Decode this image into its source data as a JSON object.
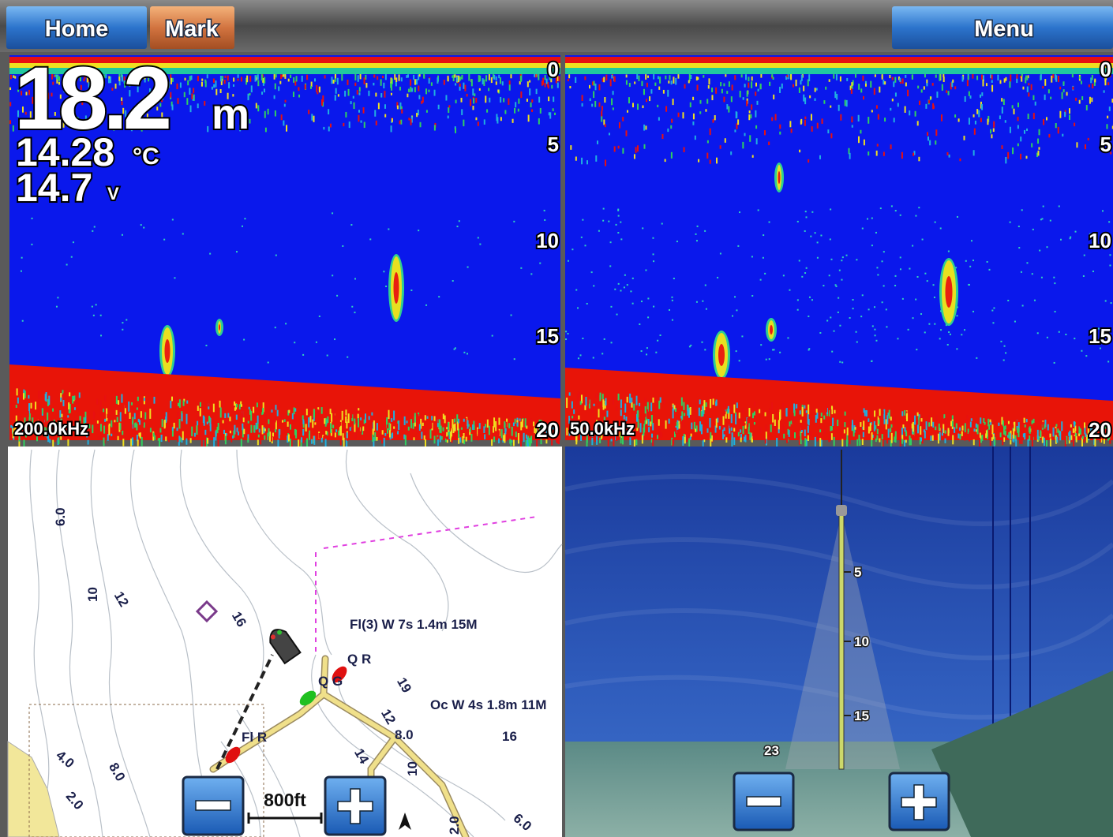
{
  "top_bar": {
    "home": "Home",
    "mark": "Mark",
    "menu": "Menu"
  },
  "sonar_left": {
    "depth": "18.2",
    "depth_unit": "m",
    "temperature": "14.28",
    "temperature_unit": "°C",
    "voltage": "14.7",
    "voltage_unit": "V",
    "scale": [
      "0",
      "5",
      "10",
      "15",
      "20"
    ],
    "frequency": "200.0kHz"
  },
  "sonar_right": {
    "scale": [
      "0",
      "5",
      "10",
      "15",
      "20"
    ],
    "frequency": "50.0kHz"
  },
  "chart": {
    "labels": [
      "6.0",
      "10",
      "12",
      "16",
      "Fl(3) W 7s 1.4m 15M",
      "Q R",
      "Q G",
      "19",
      "Oc W 4s 1.8m 11M",
      "12",
      "8.0",
      "16",
      "Fl R",
      "14",
      "10",
      "4.0",
      "8.0",
      "2.0",
      "6.0",
      "2.0"
    ],
    "scale": "800ft"
  },
  "view_3d": {
    "scale": [
      "5",
      "10",
      "15"
    ],
    "depth": "23"
  }
}
